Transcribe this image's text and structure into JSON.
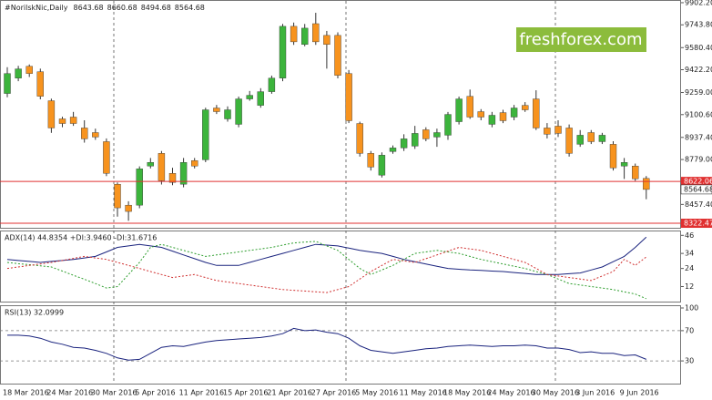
{
  "chart_data": [
    {
      "type": "candlestick",
      "title": "#NorilskNic,Daily",
      "categories": [
        "18 Mar 2016",
        null,
        null,
        null,
        "24 Mar 2016",
        null,
        null,
        null,
        "30 Mar 2016",
        null,
        null,
        null,
        "5 Apr 2016",
        null,
        null,
        null,
        "11 Apr 2016",
        null,
        null,
        null,
        "15 Apr 2016",
        null,
        null,
        null,
        "21 Apr 2016",
        null,
        null,
        null,
        "27 Apr 2016",
        null,
        null,
        null,
        "5 May 2016",
        null,
        null,
        null,
        "11 May 2016",
        null,
        null,
        null,
        "18 May 2016",
        null,
        null,
        null,
        "24 May 2016",
        null,
        null,
        null,
        "30 May 2016",
        null,
        null,
        null,
        "3 Jun 2016",
        null,
        null,
        null,
        "9 Jun 2016",
        null,
        null
      ],
      "open": [
        9252,
        9362,
        9447,
        9408,
        9200,
        9070,
        9083,
        9005,
        8972,
        8907,
        8602,
        8452,
        8452,
        8732,
        8823,
        8680,
        8602,
        8771,
        8777,
        9148,
        9070,
        9031,
        9213,
        9167,
        9265,
        9362,
        9733,
        9603,
        9752,
        9668,
        9668,
        9395,
        9037,
        8823,
        8667,
        8836,
        8862,
        8875,
        8992,
        8940,
        8953,
        9050,
        9232,
        9122,
        9031,
        9115,
        9083,
        9167,
        9213,
        9005,
        9018,
        9005,
        8888,
        8972,
        8907,
        8888,
        8732,
        8732,
        8643.68
      ],
      "high": [
        9440,
        9450,
        9460,
        9430,
        9215,
        9085,
        9120,
        9060,
        9000,
        8930,
        8615,
        8480,
        8730,
        8790,
        8840,
        8720,
        8790,
        8790,
        9150,
        9170,
        9160,
        9230,
        9270,
        9290,
        9380,
        9750,
        9760,
        9750,
        9830,
        9700,
        9690,
        9420,
        9050,
        8840,
        8830,
        8880,
        8960,
        9020,
        9010,
        9000,
        9120,
        9230,
        9280,
        9140,
        9120,
        9135,
        9170,
        9190,
        9275,
        9040,
        9060,
        9030,
        8990,
        8990,
        8970,
        8910,
        8790,
        8750,
        8660.68
      ],
      "low": [
        9225,
        9340,
        9370,
        9210,
        8970,
        9010,
        9020,
        8900,
        8920,
        8660,
        8370,
        8340,
        8430,
        8715,
        8600,
        8595,
        8580,
        8715,
        8760,
        9105,
        9050,
        9010,
        9200,
        9150,
        9250,
        9340,
        9600,
        9590,
        9600,
        9430,
        9360,
        9040,
        8800,
        8700,
        8650,
        8820,
        8840,
        8855,
        8910,
        8870,
        8920,
        9030,
        9070,
        9060,
        9010,
        9040,
        9060,
        9120,
        8990,
        8930,
        8940,
        8800,
        8870,
        8890,
        8890,
        8700,
        8640,
        8625,
        8494.68
      ],
      "close": [
        9395,
        9428,
        9395,
        9232,
        9005,
        9037,
        9037,
        8927,
        8940,
        8680,
        8433,
        8407,
        8712,
        8758,
        8628,
        8615,
        8758,
        8732,
        9135,
        9122,
        9135,
        9213,
        9239,
        9265,
        9362,
        9733,
        9622,
        9720,
        9622,
        9603,
        9382,
        9057,
        8823,
        8725,
        8810,
        8862,
        8927,
        8966,
        8927,
        8972,
        9102,
        9213,
        9083,
        9083,
        9096,
        9057,
        9148,
        9135,
        9005,
        8960,
        8966,
        8823,
        8953,
        8907,
        8953,
        8719,
        8758,
        8641,
        8564.68
      ],
      "up_color": "#3cb43c",
      "down_color": "#f7931e",
      "ylim": [
        8290,
        9915
      ],
      "yticks": [
        {
          "value": 9902.2,
          "label": "9902.20"
        },
        {
          "value": 9743.8,
          "label": "9743.80"
        },
        {
          "value": 9580.4,
          "label": "9580.40"
        },
        {
          "value": 9422.2,
          "label": "9422.20"
        },
        {
          "value": 9259,
          "label": "9259.00"
        },
        {
          "value": 9100.6,
          "label": "9100.60"
        },
        {
          "value": 8937.4,
          "label": "8937.40"
        },
        {
          "value": 8779,
          "label": "8779.00"
        },
        {
          "value": 8457.4,
          "label": "8457.40"
        }
      ],
      "levels": [
        8622.06,
        8322.47
      ],
      "level_color": "#e03030",
      "watermark": "freshforex.com"
    },
    {
      "type": "line",
      "title": "ADX(14) 44.8354 +DI:3.9460 -DI:31.6716",
      "series": [
        {
          "color": "#1a237e",
          "style": "solid",
          "values": [
            30,
            29.3,
            28.7,
            28,
            28.7,
            29.3,
            30,
            31,
            32,
            35,
            38,
            39,
            40,
            39,
            38,
            35.5,
            33,
            30.5,
            28,
            26,
            26,
            26,
            28,
            30,
            32,
            34,
            36,
            38,
            40,
            39.5,
            39,
            37.5,
            36,
            35,
            34,
            32,
            30,
            28.5,
            27,
            25.5,
            24,
            23.5,
            23,
            22.7,
            22.3,
            22,
            21.3,
            20.7,
            20,
            20,
            20,
            20.5,
            21,
            23,
            25,
            28.5,
            32,
            38,
            44.8354
          ]
        },
        {
          "color": "#2e9e2e",
          "style": "dashed",
          "values": [
            28,
            27.2,
            26.5,
            25.8,
            25,
            22.3,
            19.5,
            16.8,
            14,
            11,
            12,
            20,
            28,
            38,
            40,
            38,
            36,
            34,
            32,
            33,
            34,
            35,
            36,
            37,
            38,
            39.5,
            41,
            41.5,
            42,
            39,
            36,
            30,
            24,
            20,
            23,
            26,
            30,
            34,
            35,
            36,
            35,
            34,
            32,
            30,
            28.5,
            27,
            25.5,
            24,
            22,
            20,
            17,
            14,
            13,
            12,
            11,
            10,
            8.5,
            7,
            3.946
          ]
        },
        {
          "color": "#d03030",
          "style": "dashed",
          "values": [
            24,
            25,
            26,
            27,
            28,
            29.3,
            30.7,
            32,
            31,
            30,
            28,
            26,
            24,
            22,
            20,
            18,
            19,
            20,
            18,
            16,
            15,
            14,
            13,
            12,
            11,
            10,
            9.5,
            9,
            8.5,
            8,
            10,
            12,
            17,
            22,
            26,
            30,
            29,
            28,
            30.5,
            33,
            35.5,
            38,
            37,
            36,
            34,
            32,
            30,
            28,
            24,
            20,
            19,
            18,
            17,
            16,
            19,
            22,
            30,
            26,
            31.6716
          ]
        }
      ],
      "ylim": [
        2,
        48.6
      ],
      "yticks": [
        46,
        34,
        24,
        12
      ]
    },
    {
      "type": "line",
      "title": "RSI(13) 32.0999",
      "series": [
        {
          "color": "#1a237e",
          "style": "solid",
          "values": [
            64,
            64,
            63,
            60,
            55,
            52,
            48,
            47,
            44,
            40,
            34,
            31,
            32,
            40,
            48,
            50,
            49,
            52,
            55,
            57,
            58,
            59,
            60,
            61,
            63,
            66,
            73,
            70,
            71,
            68,
            66,
            60,
            50,
            44,
            42,
            40,
            42,
            44,
            46,
            47,
            49,
            50,
            51,
            50,
            49,
            50,
            50,
            51,
            50,
            47,
            47,
            45,
            41,
            42,
            40,
            40,
            37,
            38,
            32.0999
          ]
        }
      ],
      "ylim": [
        0,
        100
      ],
      "yticks": [
        100,
        70,
        30
      ],
      "levels": [
        70,
        30
      ]
    }
  ]
}
